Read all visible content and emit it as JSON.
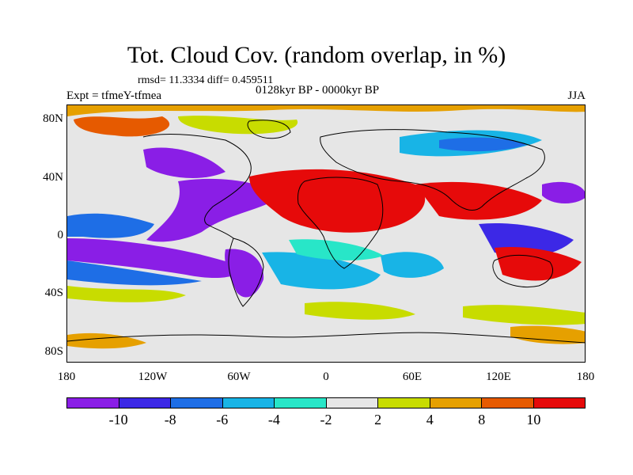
{
  "title": "Tot. Cloud Cov. (random overlap, in %)",
  "stats": "rmsd= 11.3334 diff= 0.459511",
  "experiment": "Expt = tfmeY-tfmea",
  "period": "0128kyr BP - 0000kyr BP",
  "season": "JJA",
  "lat_labels": [
    "80N",
    "40N",
    "0",
    "40S",
    "80S"
  ],
  "lon_labels": [
    "180",
    "120W",
    "60W",
    "0",
    "60E",
    "120E",
    "180"
  ],
  "colorbar": {
    "labels": [
      "-10",
      "-8",
      "-6",
      "-4",
      "-2",
      "2",
      "4",
      "8",
      "10"
    ],
    "colors": [
      "#8a1ee6",
      "#3c28e6",
      "#1e6ee6",
      "#18b4e6",
      "#28e6c8",
      "#e6e6e6",
      "#c8dc00",
      "#e6a000",
      "#e65a00",
      "#e60a0a"
    ]
  },
  "map_colors": {
    "background": "#e6e6e6",
    "coast": "#000000"
  }
}
